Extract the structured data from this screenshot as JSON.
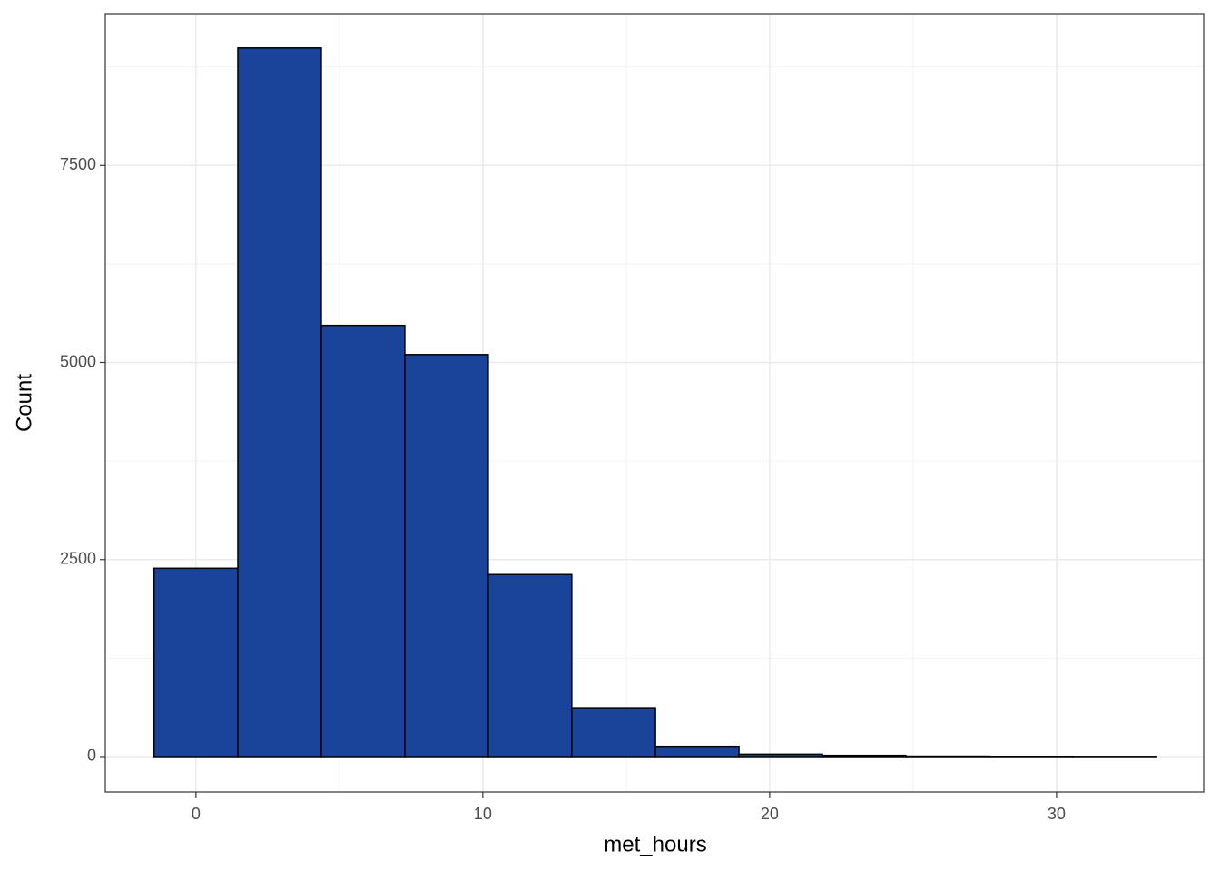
{
  "chart_data": {
    "type": "histogram",
    "x_label": "met_hours",
    "y_label": "Count",
    "bins": [
      -1.46,
      1.46,
      4.37,
      7.28,
      10.19,
      13.1,
      16.02,
      18.93,
      21.84,
      24.75,
      27.66,
      30.58,
      33.49
    ],
    "values": [
      2390,
      8990,
      5470,
      5100,
      2310,
      620,
      130,
      30,
      15,
      5,
      3,
      2
    ],
    "color": "#1a4499",
    "edge_color": "#000000",
    "xlim": [
      -3.16,
      35.13
    ],
    "ylim": [
      -449,
      9425
    ],
    "xticks": [
      0,
      10,
      20,
      30
    ],
    "yticks": [
      0,
      2500,
      5000,
      7500
    ],
    "xminor": [
      5,
      15,
      25
    ],
    "yminor": [
      1250,
      3750,
      6250,
      8750
    ],
    "grid": true
  }
}
